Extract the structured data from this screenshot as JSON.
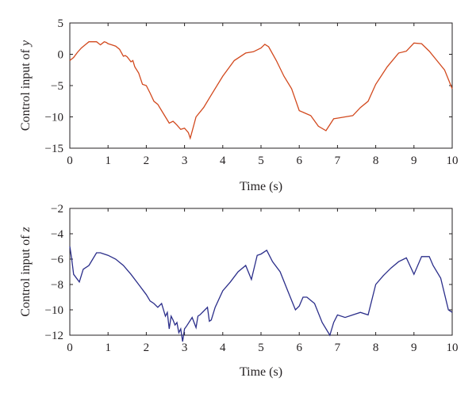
{
  "chart_data": [
    {
      "type": "line",
      "xlabel": "Time (s)",
      "ylabel": "Control input of ",
      "ylabel_var": "y",
      "xlim": [
        0,
        10
      ],
      "ylim": [
        -15,
        5
      ],
      "xticks": [
        "0",
        "1",
        "2",
        "3",
        "4",
        "5",
        "6",
        "7",
        "8",
        "9",
        "10"
      ],
      "yticks": [
        "5",
        "0",
        "−5",
        "−10",
        "−15"
      ],
      "grid": false,
      "series": [
        {
          "color": "#d2491e",
          "x": [
            0,
            0.1,
            0.2,
            0.3,
            0.4,
            0.5,
            0.6,
            0.7,
            0.8,
            0.9,
            0.95,
            1.0,
            1.1,
            1.2,
            1.3,
            1.4,
            1.45,
            1.5,
            1.6,
            1.65,
            1.7,
            1.8,
            1.9,
            2.0,
            2.1,
            2.2,
            2.3,
            2.4,
            2.5,
            2.6,
            2.7,
            2.75,
            2.8,
            2.9,
            3.0,
            3.1,
            3.15,
            3.2,
            3.3,
            3.5,
            3.7,
            4.0,
            4.3,
            4.6,
            4.8,
            5.0,
            5.1,
            5.2,
            5.4,
            5.6,
            5.8,
            6.0,
            6.3,
            6.5,
            6.7,
            6.9,
            7.0,
            7.2,
            7.4,
            7.6,
            7.8,
            8.0,
            8.3,
            8.6,
            8.8,
            9.0,
            9.2,
            9.4,
            9.6,
            9.8,
            10.0
          ],
          "y": [
            -1.0,
            -0.5,
            0.3,
            1.0,
            1.5,
            2.0,
            2.0,
            2.0,
            1.5,
            2.0,
            1.9,
            1.7,
            1.5,
            1.3,
            0.8,
            -0.3,
            -0.2,
            -0.4,
            -1.2,
            -1.0,
            -2.0,
            -3.0,
            -4.8,
            -5.0,
            -6.2,
            -7.5,
            -8.0,
            -9.0,
            -10.0,
            -11.0,
            -10.7,
            -11.0,
            -11.3,
            -12.0,
            -11.8,
            -12.5,
            -13.4,
            -12.3,
            -10.0,
            -8.5,
            -6.5,
            -3.5,
            -1.0,
            0.2,
            0.4,
            1.0,
            1.6,
            1.2,
            -1.0,
            -3.5,
            -5.5,
            -9.0,
            -9.8,
            -11.5,
            -12.2,
            -10.3,
            -10.2,
            -10.0,
            -9.8,
            -8.5,
            -7.5,
            -4.8,
            -2.0,
            0.2,
            0.5,
            1.8,
            1.7,
            0.5,
            -1.0,
            -2.5,
            -5.5
          ]
        }
      ]
    },
    {
      "type": "line",
      "xlabel": "Time (s)",
      "ylabel": "Control input of ",
      "ylabel_var": "z",
      "xlim": [
        0,
        10
      ],
      "ylim": [
        -12,
        -2
      ],
      "xticks": [
        "0",
        "1",
        "2",
        "3",
        "4",
        "5",
        "6",
        "7",
        "8",
        "9",
        "10"
      ],
      "yticks": [
        "−2",
        "−4",
        "−6",
        "−8",
        "−10",
        "−12"
      ],
      "grid": false,
      "series": [
        {
          "color": "#2b2e8a",
          "x": [
            0,
            0.05,
            0.1,
            0.25,
            0.35,
            0.5,
            0.6,
            0.7,
            0.8,
            1.0,
            1.2,
            1.4,
            1.6,
            1.8,
            2.0,
            2.1,
            2.2,
            2.3,
            2.4,
            2.5,
            2.55,
            2.6,
            2.65,
            2.7,
            2.75,
            2.8,
            2.85,
            2.9,
            2.95,
            3.0,
            3.05,
            3.2,
            3.3,
            3.35,
            3.4,
            3.6,
            3.65,
            3.7,
            3.8,
            4.0,
            4.2,
            4.4,
            4.6,
            4.75,
            4.9,
            5.0,
            5.15,
            5.3,
            5.5,
            5.7,
            5.9,
            6.0,
            6.1,
            6.2,
            6.4,
            6.6,
            6.8,
            6.9,
            7.0,
            7.2,
            7.4,
            7.6,
            7.8,
            8.0,
            8.2,
            8.4,
            8.6,
            8.8,
            9.0,
            9.2,
            9.4,
            9.5,
            9.7,
            9.9,
            10.0
          ],
          "y": [
            -5.0,
            -6.0,
            -7.2,
            -7.8,
            -6.8,
            -6.5,
            -6.0,
            -5.5,
            -5.5,
            -5.7,
            -6.0,
            -6.5,
            -7.2,
            -8.0,
            -8.8,
            -9.3,
            -9.5,
            -9.8,
            -9.5,
            -10.5,
            -10.2,
            -11.5,
            -10.5,
            -10.8,
            -11.2,
            -11.0,
            -11.8,
            -11.5,
            -12.5,
            -11.5,
            -11.3,
            -10.6,
            -11.4,
            -10.5,
            -10.4,
            -9.8,
            -10.9,
            -10.8,
            -9.8,
            -8.5,
            -7.8,
            -7.0,
            -6.5,
            -7.6,
            -5.7,
            -5.6,
            -5.3,
            -6.2,
            -7.0,
            -8.5,
            -10.0,
            -9.7,
            -9.0,
            -9.0,
            -9.5,
            -11.0,
            -12.0,
            -11.0,
            -10.4,
            -10.6,
            -10.4,
            -10.2,
            -10.4,
            -8.0,
            -7.3,
            -6.7,
            -6.2,
            -5.9,
            -7.2,
            -5.8,
            -5.8,
            -6.5,
            -7.5,
            -10.0,
            -10.2
          ]
        }
      ]
    }
  ]
}
